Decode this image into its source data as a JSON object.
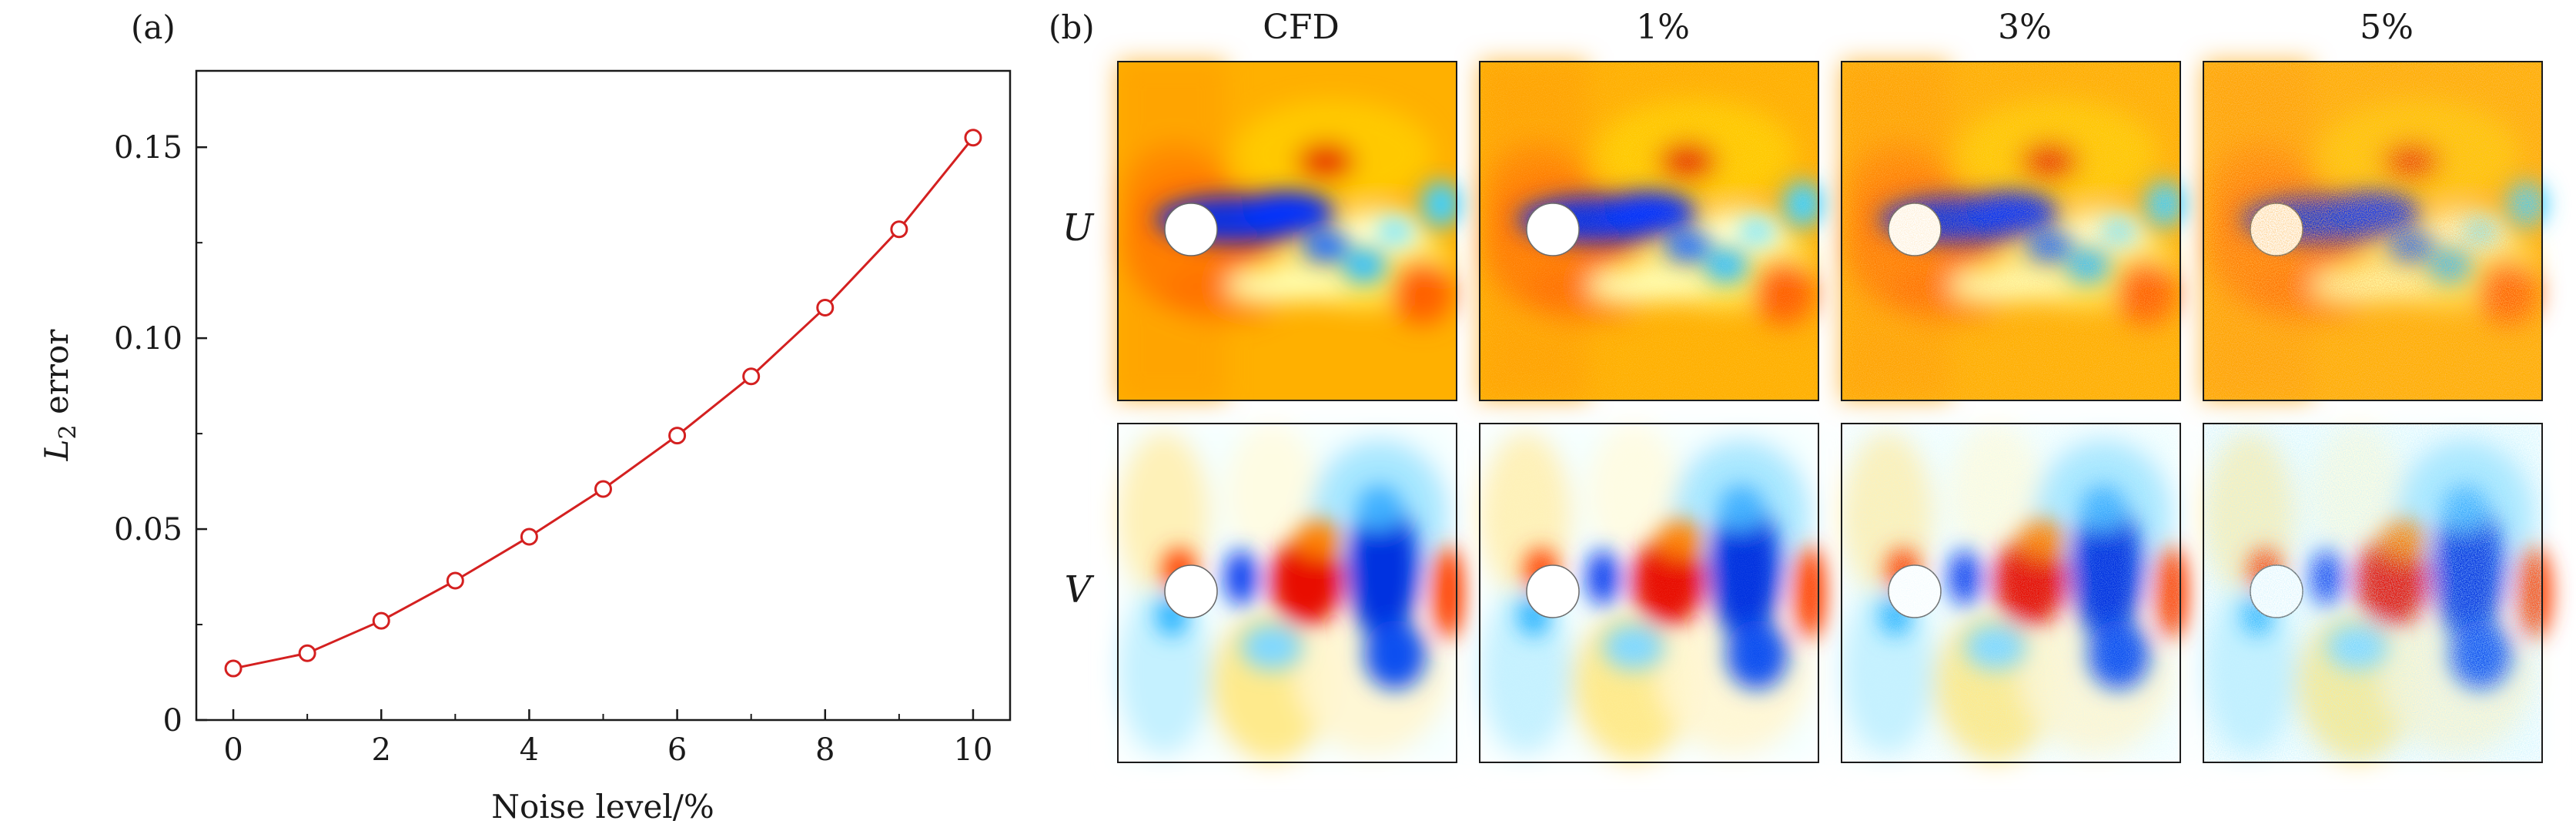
{
  "chart_data": [
    {
      "panel": "(a)",
      "type": "line",
      "title": "",
      "xlabel": "Noise level/%",
      "ylabel": "L₂ error",
      "ylabel_parts": {
        "symbol": "L",
        "subscript": "2",
        "rest": " error"
      },
      "x": [
        0,
        1,
        2,
        3,
        4,
        5,
        6,
        7,
        8,
        9,
        10
      ],
      "series": [
        {
          "name": "L2 error",
          "color": "#d42020",
          "values": [
            0.0135,
            0.0175,
            0.026,
            0.0365,
            0.048,
            0.0605,
            0.0745,
            0.09,
            0.108,
            0.1285,
            0.1525
          ]
        }
      ],
      "xlim": [
        -0.5,
        10.5
      ],
      "ylim": [
        0,
        0.17
      ],
      "xticks": [
        0,
        2,
        4,
        6,
        8,
        10
      ],
      "xtick_labels": [
        "0",
        "2",
        "4",
        "6",
        "8",
        "10"
      ],
      "yticks": [
        0,
        0.05,
        0.1,
        0.15
      ],
      "ytick_labels": [
        "0",
        "0.05",
        "0.10",
        "0.15"
      ],
      "grid": false,
      "marker": "open-circle"
    },
    {
      "panel": "(b)",
      "type": "heatmap",
      "title": "",
      "columns": [
        "CFD",
        "1%",
        "3%",
        "5%"
      ],
      "noise_fraction": [
        0,
        0.01,
        0.03,
        0.05
      ],
      "rows": [
        "U",
        "V"
      ],
      "colormap": "jet",
      "colors": {
        "u_background": "#ffb400",
        "v_background": "#ffffff",
        "obstacle": "#ffffff"
      }
    }
  ]
}
